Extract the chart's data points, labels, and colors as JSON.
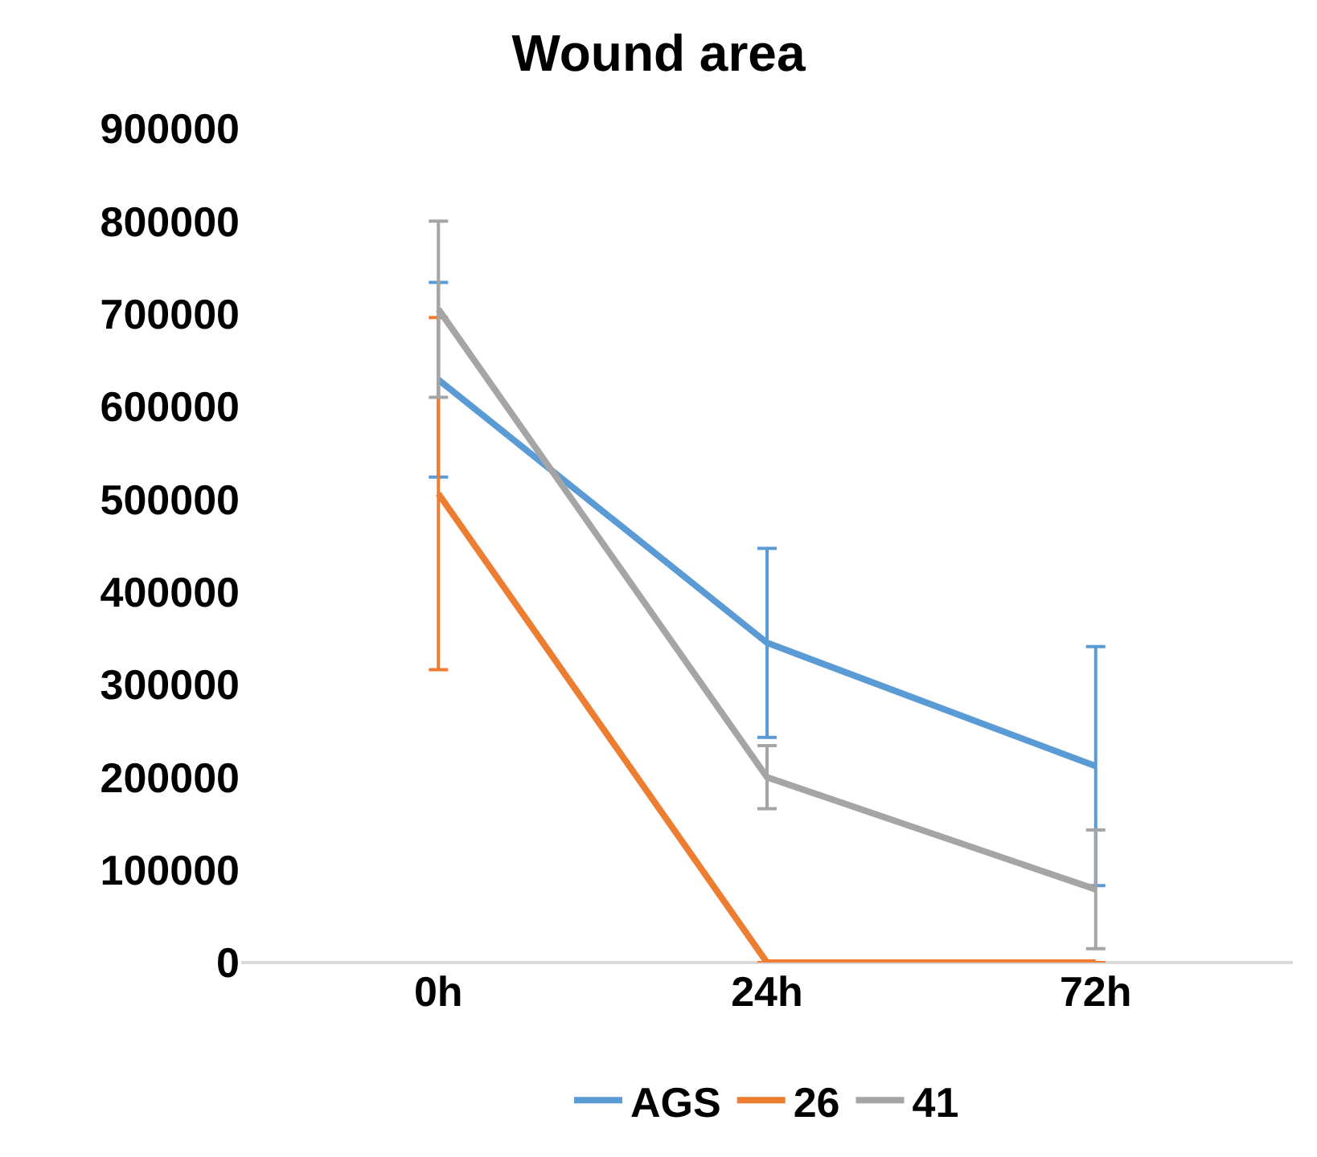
{
  "chart_data": {
    "type": "line",
    "title": "Wound area",
    "categories": [
      "0h",
      "24h",
      "72h"
    ],
    "series": [
      {
        "name": "AGS",
        "color": "#5b9bd5",
        "values": [
          629000,
          345000,
          212000
        ],
        "errors": [
          105000,
          102000,
          129000
        ]
      },
      {
        "name": "26",
        "color": "#ed7d31",
        "values": [
          506000,
          0,
          0
        ],
        "errors": [
          190000,
          null,
          null
        ]
      },
      {
        "name": "41",
        "color": "#a5a5a5",
        "values": [
          705000,
          200000,
          79000
        ],
        "errors": [
          95000,
          34000,
          64000
        ]
      }
    ],
    "ylim": [
      0,
      900000
    ],
    "yticks": [
      0,
      100000,
      200000,
      300000,
      400000,
      500000,
      600000,
      700000,
      800000,
      900000
    ],
    "grid": false,
    "legend": "bottom",
    "marker": "none",
    "line_style": "solid"
  }
}
